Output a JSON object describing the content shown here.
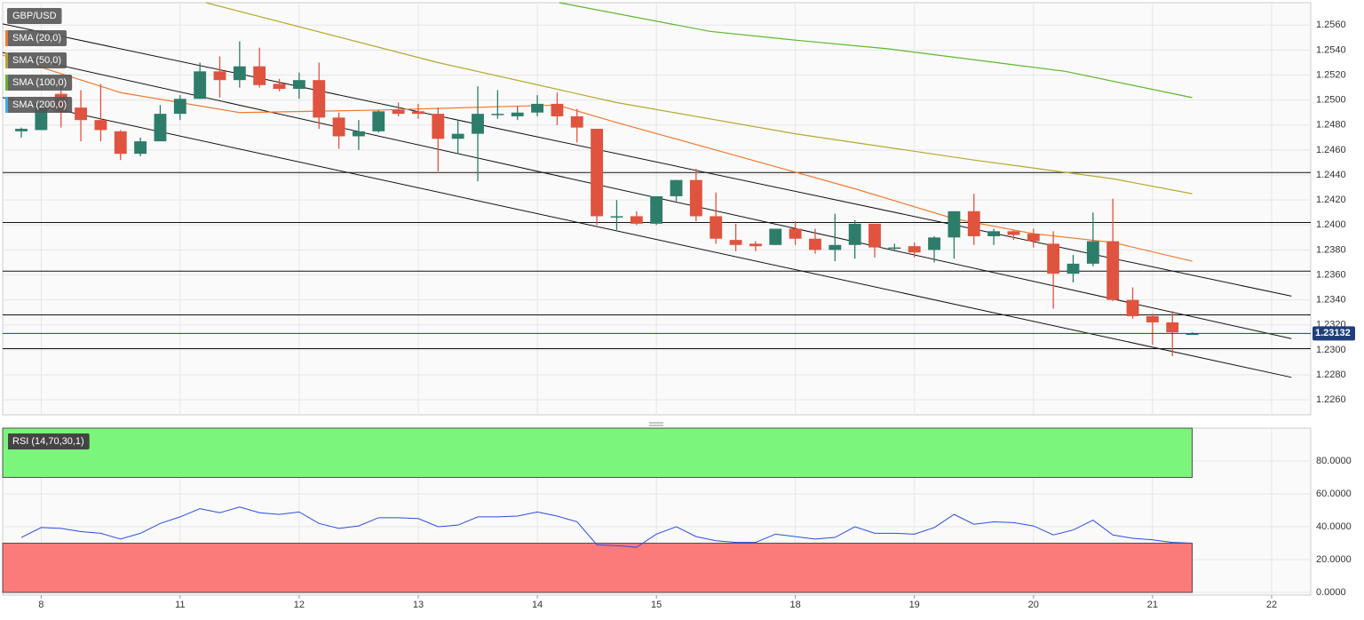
{
  "chart_data": [
    {
      "type": "candlestick",
      "title": "GBP/USD",
      "x": [
        0,
        1,
        2,
        3,
        4,
        5,
        6,
        7,
        8,
        9,
        10,
        11,
        12,
        13,
        14,
        15,
        16,
        17,
        18,
        19,
        20,
        21,
        22,
        23,
        24,
        25,
        26,
        27,
        28,
        29,
        30,
        31,
        32,
        33,
        34,
        35,
        36,
        37,
        38,
        39,
        40,
        41,
        42,
        43,
        44,
        45,
        46,
        47,
        48,
        49,
        50,
        51,
        52,
        53,
        54,
        55,
        56,
        57,
        58,
        59
      ],
      "open": [
        1.2475,
        1.2476,
        1.2505,
        1.2494,
        1.2484,
        1.2475,
        1.2457,
        1.2467,
        1.2489,
        1.2501,
        1.2523,
        1.2516,
        1.2527,
        1.2513,
        1.2509,
        1.2516,
        1.2486,
        1.2471,
        1.2475,
        1.2492,
        1.2491,
        1.2489,
        1.2469,
        1.2473,
        1.2489,
        1.2487,
        1.249,
        1.2497,
        1.2487,
        1.2477,
        1.2407,
        1.2407,
        1.2401,
        1.2423,
        1.2436,
        1.2407,
        1.2388,
        1.2385,
        1.2384,
        1.2397,
        1.2389,
        1.238,
        1.2384,
        1.2401,
        1.2382,
        1.2383,
        1.238,
        1.239,
        1.2411,
        1.2391,
        1.2395,
        1.2393,
        1.2385,
        1.2361,
        1.2369,
        1.2387,
        1.234,
        1.2327,
        1.2322,
        1.2313
      ],
      "high": [
        1.2478,
        1.2498,
        1.2512,
        1.2508,
        1.2513,
        1.2476,
        1.247,
        1.2496,
        1.2504,
        1.253,
        1.2535,
        1.2547,
        1.2542,
        1.2517,
        1.2522,
        1.253,
        1.249,
        1.2484,
        1.2492,
        1.2498,
        1.2497,
        1.2494,
        1.2484,
        1.2511,
        1.2508,
        1.2495,
        1.2504,
        1.2506,
        1.2493,
        1.2477,
        1.242,
        1.2411,
        1.2423,
        1.2436,
        1.2445,
        1.2426,
        1.2401,
        1.2387,
        1.2397,
        1.2403,
        1.2397,
        1.2409,
        1.2404,
        1.2401,
        1.2385,
        1.2386,
        1.2391,
        1.2411,
        1.2425,
        1.2397,
        1.2396,
        1.2397,
        1.2395,
        1.2376,
        1.241,
        1.2421,
        1.235,
        1.2329,
        1.2331,
        1.2314
      ],
      "low": [
        1.247,
        1.2476,
        1.2478,
        1.2467,
        1.2467,
        1.2452,
        1.2455,
        1.2467,
        1.2484,
        1.2501,
        1.2502,
        1.251,
        1.251,
        1.2507,
        1.2501,
        1.2477,
        1.2461,
        1.246,
        1.2474,
        1.2487,
        1.2485,
        1.2443,
        1.2457,
        1.2435,
        1.2485,
        1.2484,
        1.2487,
        1.248,
        1.2466,
        1.24,
        1.2396,
        1.24,
        1.24,
        1.2419,
        1.2403,
        1.2385,
        1.2379,
        1.2379,
        1.2384,
        1.2384,
        1.2377,
        1.2371,
        1.2373,
        1.2374,
        1.238,
        1.2374,
        1.237,
        1.2373,
        1.2384,
        1.2384,
        1.2388,
        1.2382,
        1.2333,
        1.2354,
        1.2367,
        1.2339,
        1.2325,
        1.2304,
        1.2295,
        1.2313
      ],
      "close": [
        1.2477,
        1.2494,
        1.249,
        1.2484,
        1.2476,
        1.2457,
        1.2467,
        1.2489,
        1.2501,
        1.2523,
        1.2516,
        1.2527,
        1.2512,
        1.2509,
        1.2516,
        1.2486,
        1.2471,
        1.2475,
        1.2491,
        1.2489,
        1.2489,
        1.2469,
        1.2473,
        1.2489,
        1.2489,
        1.249,
        1.2497,
        1.2487,
        1.2478,
        1.2407,
        1.2407,
        1.2401,
        1.2423,
        1.2436,
        1.2407,
        1.2389,
        1.2384,
        1.2383,
        1.2397,
        1.2389,
        1.238,
        1.2384,
        1.2401,
        1.2382,
        1.2382,
        1.2378,
        1.239,
        1.2411,
        1.2391,
        1.2395,
        1.2392,
        1.2387,
        1.2361,
        1.2369,
        1.2387,
        1.234,
        1.2327,
        1.2322,
        1.2314,
        1.2313
      ],
      "up_color": "#2e7d6b",
      "down_color": "#e0533f",
      "series": [
        {
          "name": "SMA (20,0)",
          "color": "#f07b2f",
          "x": [
            -0.94,
            5,
            11,
            18,
            27,
            30,
            35,
            42,
            47,
            51,
            55,
            59
          ],
          "values": [
            1.2536,
            1.2506,
            1.249,
            1.2492,
            1.2496,
            1.2482,
            1.246,
            1.2429,
            1.2405,
            1.2393,
            1.2386,
            1.2371
          ]
        },
        {
          "name": "SMA (50,0)",
          "color": "#b5a82e",
          "x": [
            9.3,
            21,
            30,
            39,
            48,
            55,
            59
          ],
          "values": [
            1.2578,
            1.253,
            1.2498,
            1.2473,
            1.2452,
            1.2437,
            1.2425
          ]
        },
        {
          "name": "SMA (100,0)",
          "color": "#5cb82e",
          "x": [
            27.1,
            34.7,
            39,
            43.7,
            52.6,
            59
          ],
          "values": [
            1.2578,
            1.2555,
            1.2548,
            1.2541,
            1.2523,
            1.2502
          ]
        },
        {
          "name": "SMA (200,0)",
          "color": "#3fa9f5",
          "x": [],
          "values": []
        }
      ],
      "levels": [
        1.2442,
        1.2402,
        1.2363,
        1.2328,
        1.2301
      ],
      "channels": [
        {
          "x": [
            -0.94,
            64
          ],
          "values": [
            1.2561,
            1.2343
          ]
        },
        {
          "x": [
            -0.94,
            64
          ],
          "values": [
            1.2538,
            1.2309
          ]
        },
        {
          "x": [
            -0.94,
            64
          ],
          "values": [
            1.2502,
            1.2278
          ]
        }
      ],
      "last_price": 1.23132,
      "last_price_color": "#1f3f7a",
      "xlim": [
        -0.94,
        64.97
      ],
      "xticks": [
        {
          "value": 1,
          "label": "8"
        },
        {
          "value": 8,
          "label": "11"
        },
        {
          "value": 14,
          "label": "12"
        },
        {
          "value": 20,
          "label": "13"
        },
        {
          "value": 26,
          "label": "14"
        },
        {
          "value": 32,
          "label": "15"
        },
        {
          "value": 39,
          "label": "18"
        },
        {
          "value": 45,
          "label": "19"
        },
        {
          "value": 51,
          "label": "20"
        },
        {
          "value": 57,
          "label": "21"
        },
        {
          "value": 63,
          "label": "22"
        }
      ],
      "ylim": [
        1.2248,
        1.2578
      ],
      "yticks": [
        {
          "value": 1.226,
          "label": "1.2260"
        },
        {
          "value": 1.228,
          "label": "1.2280"
        },
        {
          "value": 1.23,
          "label": "1.2300"
        },
        {
          "value": 1.232,
          "label": "1.2320"
        },
        {
          "value": 1.234,
          "label": "1.2340"
        },
        {
          "value": 1.236,
          "label": "1.2360"
        },
        {
          "value": 1.238,
          "label": "1.2380"
        },
        {
          "value": 1.24,
          "label": "1.2400"
        },
        {
          "value": 1.242,
          "label": "1.2420"
        },
        {
          "value": 1.244,
          "label": "1.2440"
        },
        {
          "value": 1.246,
          "label": "1.2460"
        },
        {
          "value": 1.248,
          "label": "1.2480"
        },
        {
          "value": 1.25,
          "label": "1.2500"
        },
        {
          "value": 1.252,
          "label": "1.2520"
        },
        {
          "value": 1.254,
          "label": "1.2540"
        },
        {
          "value": 1.256,
          "label": "1.2560"
        }
      ],
      "grid": true
    },
    {
      "type": "line",
      "title": "RSI (14,70,30,1)",
      "color": "#2a4de0",
      "x": [
        0,
        1,
        2,
        3,
        4,
        5,
        6,
        7,
        8,
        9,
        10,
        11,
        12,
        13,
        14,
        15,
        16,
        17,
        18,
        19,
        20,
        21,
        22,
        23,
        24,
        25,
        26,
        27,
        28,
        29,
        30,
        31,
        32,
        33,
        34,
        35,
        36,
        37,
        38,
        39,
        40,
        41,
        42,
        43,
        44,
        45,
        46,
        47,
        48,
        49,
        50,
        51,
        52,
        53,
        54,
        55,
        56,
        57,
        58,
        59
      ],
      "values": [
        33.5,
        39.5,
        39,
        37,
        36,
        32.5,
        36,
        42,
        46,
        51,
        48.5,
        52,
        48.5,
        47.5,
        49,
        42,
        39,
        40.5,
        45.5,
        45.5,
        45,
        40,
        41,
        46,
        46,
        46.5,
        49,
        46.5,
        43,
        29,
        28.5,
        27.5,
        35.5,
        40,
        34,
        31.5,
        30.5,
        30.5,
        35.5,
        34,
        32.5,
        33.5,
        40,
        36,
        36,
        35.5,
        39.5,
        47.5,
        41.5,
        43,
        42.5,
        40.5,
        35,
        38,
        44,
        35,
        33,
        32,
        30.5,
        30
      ],
      "bands": [
        {
          "range": [
            70,
            100
          ],
          "color": "#7cf57c"
        },
        {
          "range": [
            0,
            30
          ],
          "color": "#fb7b7b"
        }
      ],
      "ylim": [
        0,
        100
      ],
      "yticks": [
        {
          "value": 0,
          "label": "0.0000"
        },
        {
          "value": 20,
          "label": "20.0000"
        },
        {
          "value": 40,
          "label": "40.0000"
        },
        {
          "value": 60,
          "label": "60.0000"
        },
        {
          "value": 80,
          "label": "80.0000"
        }
      ],
      "grid": true
    }
  ]
}
